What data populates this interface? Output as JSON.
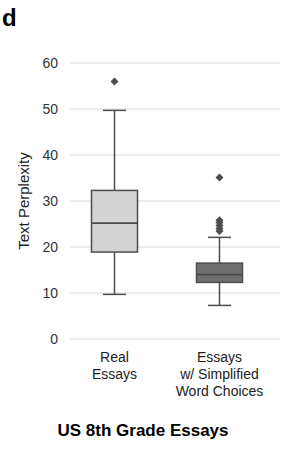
{
  "chart_data": {
    "type": "box",
    "panel_label": "d",
    "title": "US 8th Grade Essays",
    "y_label": "Text Perplexity",
    "categories": [
      "Real\nEssays",
      "Essays\nw/ Simplified\nWord Choices"
    ],
    "colors": [
      "#d3d3d3",
      "#707070"
    ],
    "boxes": [
      {
        "whislo": 9.7,
        "q1": 18.9,
        "median": 25.2,
        "q3": 32.3,
        "whishi": 49.7,
        "fliers": [
          56
        ]
      },
      {
        "whislo": 7.3,
        "q1": 12.3,
        "median": 14.0,
        "q3": 16.5,
        "whishi": 22.1,
        "fliers": [
          23.5,
          24.0,
          24.7,
          25.3,
          25.8,
          35.1
        ]
      }
    ],
    "ylim": [
      0,
      60
    ],
    "yticks": [
      0,
      10,
      20,
      30,
      40,
      50,
      60
    ],
    "grid": true
  }
}
